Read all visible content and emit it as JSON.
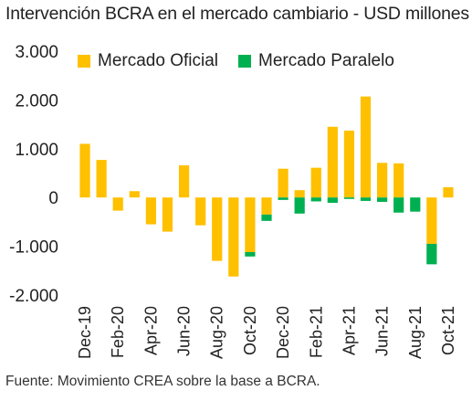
{
  "title": "Intervención BCRA en el mercado cambiario  - USD millones",
  "source": "Fuente: Movimiento CREA sobre la base a BCRA.",
  "colors": {
    "oficial": "#FFC000",
    "paralelo": "#00B050"
  },
  "chart_data": {
    "type": "bar",
    "stacked": true,
    "categories": [
      "Dec-19",
      "Jan-20",
      "Feb-20",
      "Mar-20",
      "Apr-20",
      "May-20",
      "Jun-20",
      "Jul-20",
      "Aug-20",
      "Sep-20",
      "Oct-20",
      "Nov-20",
      "Dec-20",
      "Jan-21",
      "Feb-21",
      "Mar-21",
      "Apr-21",
      "May-21",
      "Jun-21",
      "Jul-21",
      "Aug-21",
      "Sep-21",
      "Oct-21"
    ],
    "tick_labels": [
      "Dec-19",
      "",
      "Feb-20",
      "",
      "Apr-20",
      "",
      "Jun-20",
      "",
      "Aug-20",
      "",
      "Oct-20",
      "",
      "Dec-20",
      "",
      "Feb-21",
      "",
      "Apr-21",
      "",
      "Jun-21",
      "",
      "Aug-21",
      "",
      "Oct-21"
    ],
    "series": [
      {
        "name": "Mercado Oficial",
        "color": "#FFC000",
        "values": [
          1100,
          770,
          -270,
          130,
          -550,
          -700,
          660,
          -570,
          -1300,
          -1620,
          -1120,
          -350,
          590,
          150,
          610,
          1450,
          1370,
          2070,
          710,
          700,
          0,
          -950,
          210
        ]
      },
      {
        "name": "Mercado Paralelo",
        "color": "#00B050",
        "values": [
          0,
          0,
          0,
          0,
          0,
          0,
          0,
          0,
          0,
          0,
          -90,
          -130,
          -50,
          -330,
          -80,
          -110,
          -30,
          -70,
          -90,
          -310,
          -290,
          -420,
          0
        ]
      }
    ],
    "ylim": [
      -2000,
      3000
    ],
    "yticks": [
      -2000,
      -1000,
      0,
      1000,
      2000,
      3000
    ],
    "ytick_labels": [
      "-2.000",
      "-1.000",
      "0",
      "1.000",
      "2.000",
      "3.000"
    ],
    "legend": "top",
    "grid": false
  }
}
